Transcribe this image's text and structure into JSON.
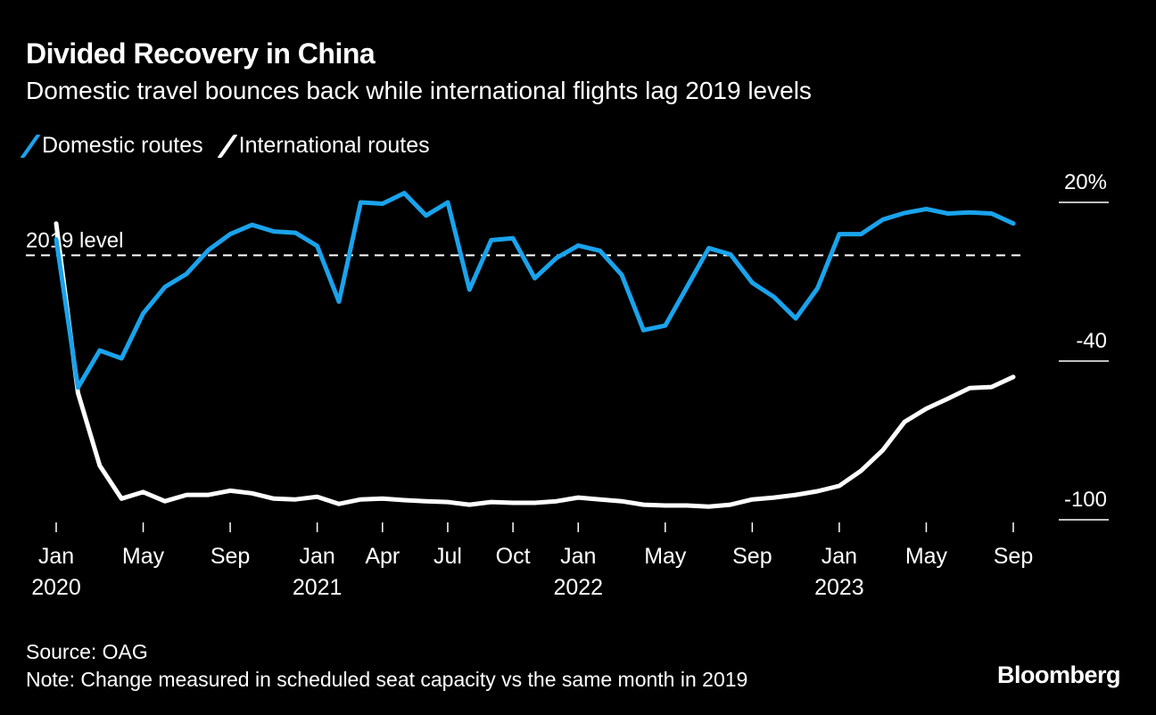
{
  "title": "Divided Recovery in China",
  "subtitle": "Domestic travel bounces back while international flights lag 2019 levels",
  "source": "Source: OAG",
  "note": "Note: Change measured in scheduled seat capacity vs the same month in 2019",
  "logo": "Bloomberg",
  "colors": {
    "domestic": "#1aa3ec",
    "international": "#ffffff",
    "background": "#000000"
  },
  "chart_data": {
    "type": "line",
    "title": "Divided Recovery in China",
    "ylabel": "",
    "xlabel": "",
    "ylim": [
      -100,
      20
    ],
    "y_ticks": [
      {
        "value": 20,
        "label": "20%"
      },
      {
        "value": -40,
        "label": "-40"
      },
      {
        "value": -100,
        "label": "-100"
      }
    ],
    "y_axis_side": "right",
    "grid": false,
    "legend_placement": "top-left",
    "reference_line": {
      "value": 0,
      "label": "2019 level",
      "style": "dashed"
    },
    "x": [
      "2020-01",
      "2020-02",
      "2020-03",
      "2020-04",
      "2020-05",
      "2020-06",
      "2020-07",
      "2020-08",
      "2020-09",
      "2020-10",
      "2020-11",
      "2020-12",
      "2021-01",
      "2021-02",
      "2021-03",
      "2021-04",
      "2021-05",
      "2021-06",
      "2021-07",
      "2021-08",
      "2021-09",
      "2021-10",
      "2021-11",
      "2021-12",
      "2022-01",
      "2022-02",
      "2022-03",
      "2022-04",
      "2022-05",
      "2022-06",
      "2022-07",
      "2022-08",
      "2022-09",
      "2022-10",
      "2022-11",
      "2022-12",
      "2023-01",
      "2023-02",
      "2023-03",
      "2023-04",
      "2023-05",
      "2023-06",
      "2023-07",
      "2023-08",
      "2023-09"
    ],
    "x_ticks": [
      {
        "index": 0,
        "label": "Jan",
        "year": "2020"
      },
      {
        "index": 4,
        "label": "May",
        "year": ""
      },
      {
        "index": 8,
        "label": "Sep",
        "year": ""
      },
      {
        "index": 12,
        "label": "Jan",
        "year": "2021"
      },
      {
        "index": 15,
        "label": "Apr",
        "year": ""
      },
      {
        "index": 18,
        "label": "Jul",
        "year": ""
      },
      {
        "index": 21,
        "label": "Oct",
        "year": ""
      },
      {
        "index": 24,
        "label": "Jan",
        "year": "2022"
      },
      {
        "index": 28,
        "label": "May",
        "year": ""
      },
      {
        "index": 32,
        "label": "Sep",
        "year": ""
      },
      {
        "index": 36,
        "label": "Jan",
        "year": "2023"
      },
      {
        "index": 40,
        "label": "May",
        "year": ""
      },
      {
        "index": 44,
        "label": "Sep",
        "year": ""
      }
    ],
    "series": [
      {
        "name": "Domestic routes",
        "color": "#1aa3ec",
        "values": [
          6,
          -50,
          -36,
          -39,
          -22,
          -12,
          -7,
          2,
          8,
          11.5,
          9,
          8.5,
          3.5,
          -17.5,
          20,
          19.5,
          23.5,
          15,
          20,
          -13,
          5.7,
          6.4,
          -8.7,
          -1,
          3.7,
          1.7,
          -7.4,
          -28.3,
          -26.6,
          -12,
          2.7,
          0.3,
          -10.4,
          -15.8,
          -23.9,
          -12.5,
          8,
          8,
          13.5,
          16,
          17.5,
          15.8,
          16.2,
          15.8,
          12
        ]
      },
      {
        "name": "International routes",
        "color": "#ffffff",
        "values": [
          12,
          -52,
          -79.5,
          -92,
          -89.5,
          -93,
          -90.6,
          -90.6,
          -89,
          -90,
          -92,
          -92.3,
          -91.3,
          -94,
          -92.3,
          -92,
          -92.6,
          -93,
          -93.3,
          -94.3,
          -93.3,
          -93.6,
          -93.6,
          -93,
          -91.6,
          -92.3,
          -93,
          -94.3,
          -94.6,
          -94.6,
          -95,
          -94.3,
          -92.3,
          -91.6,
          -90.6,
          -89.2,
          -87.2,
          -81.5,
          -73.7,
          -63,
          -58,
          -54.2,
          -50.2,
          -49.8,
          -46
        ]
      }
    ]
  }
}
